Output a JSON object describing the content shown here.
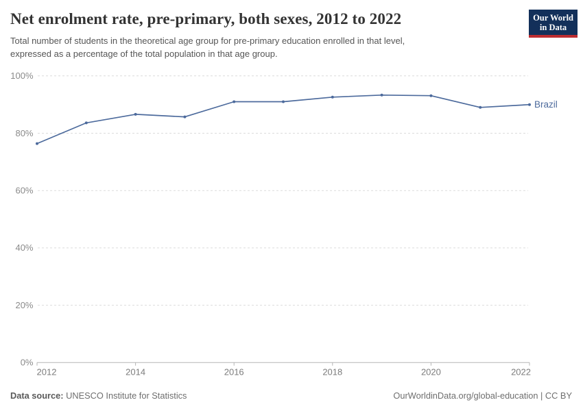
{
  "header": {
    "title": "Net enrolment rate, pre-primary, both sexes, 2012 to 2022",
    "subtitle_line1": "Total number of students in the theoretical age group for pre-primary education enrolled in that level,",
    "subtitle_line2": "expressed as a percentage of the total population in that age group.",
    "logo": {
      "line1": "Our World",
      "line2": "in Data"
    }
  },
  "chart_data": {
    "type": "line",
    "title": "Net enrolment rate, pre-primary, both sexes, 2012 to 2022",
    "x": [
      2012,
      2013,
      2014,
      2015,
      2016,
      2017,
      2018,
      2019,
      2020,
      2021,
      2022
    ],
    "series": [
      {
        "name": "Brazil",
        "color": "#4C6A9C",
        "values": [
          76.4,
          83.6,
          86.6,
          85.7,
          91.0,
          91.0,
          92.6,
          93.3,
          93.1,
          89.0,
          90.0
        ]
      }
    ],
    "xlabel": "",
    "ylabel": "",
    "ylim": [
      0,
      100
    ],
    "yticks": [
      0,
      20,
      40,
      60,
      80,
      100
    ],
    "ytick_suffix": "%",
    "xticks": [
      2012,
      2014,
      2016,
      2018,
      2020,
      2022
    ],
    "grid": "horizontal-dashed",
    "legend_position": "end-of-line-label",
    "colors": {
      "gridline": "#dcdcdc",
      "axis": "#b5b5b5",
      "ytick_label": "#8a8a8a",
      "xtick_label": "#7c7c7c"
    }
  },
  "footer": {
    "source_label": "Data source:",
    "source_value": "UNESCO Institute for Statistics",
    "credit": "OurWorldinData.org/global-education | CC BY"
  }
}
